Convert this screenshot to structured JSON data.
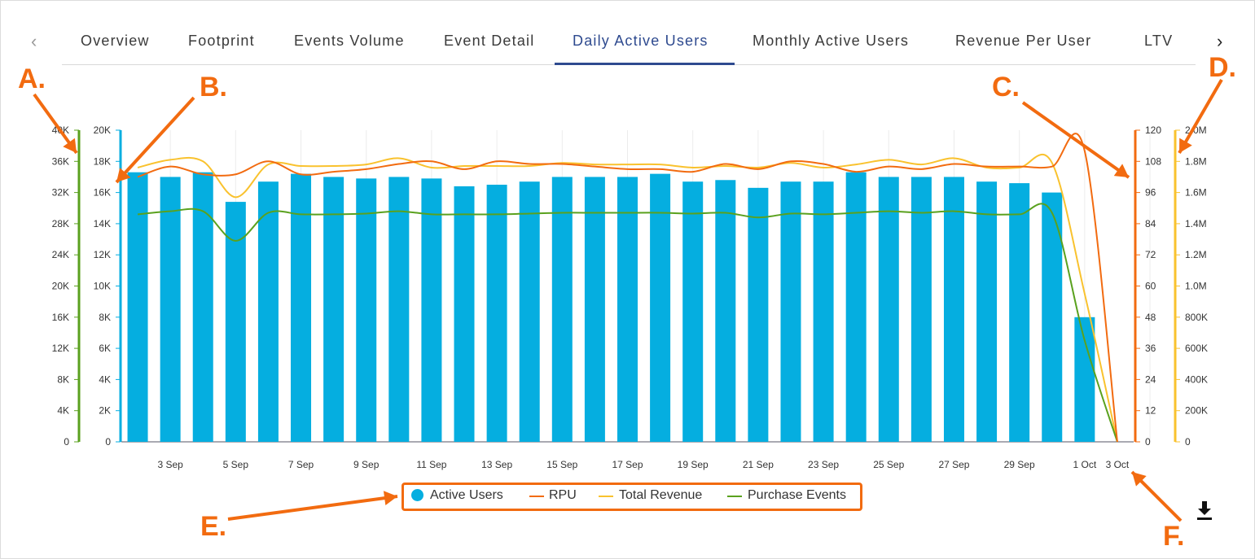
{
  "tabs": [
    {
      "label": "Overview"
    },
    {
      "label": "Footprint"
    },
    {
      "label": "Events Volume"
    },
    {
      "label": "Event Detail"
    },
    {
      "label": "Daily Active Users",
      "active": true
    },
    {
      "label": "Monthly Active Users"
    },
    {
      "label": "Revenue Per User"
    },
    {
      "label": "LTV"
    }
  ],
  "nav": {
    "prev": "‹",
    "next": "›"
  },
  "callouts": {
    "a": "A.",
    "b": "B.",
    "c": "C.",
    "d": "D.",
    "e": "E.",
    "f": "F."
  },
  "colors": {
    "active_users": "#05aee0",
    "rpu": "#f26b10",
    "total_revenue": "#f9c22e",
    "purchase_events": "#5aa11e",
    "accent": "#2e4a8f",
    "callout": "#f26b10"
  },
  "legend": [
    {
      "label": "Active Users",
      "color": "#05aee0",
      "shape": "dot"
    },
    {
      "label": "RPU",
      "color": "#f26b10",
      "shape": "line"
    },
    {
      "label": "Total Revenue",
      "color": "#f9c22e",
      "shape": "line"
    },
    {
      "label": "Purchase Events",
      "color": "#5aa11e",
      "shape": "line"
    }
  ],
  "download_icon": "download-icon",
  "chart_data": {
    "type": "bar",
    "x_tick_labels": [
      "3 Sep",
      "5 Sep",
      "7 Sep",
      "9 Sep",
      "11 Sep",
      "13 Sep",
      "15 Sep",
      "17 Sep",
      "19 Sep",
      "21 Sep",
      "23 Sep",
      "25 Sep",
      "27 Sep",
      "29 Sep",
      "1 Oct",
      "3 Oct"
    ],
    "axes": {
      "a": {
        "side": "left",
        "color": "#5aa11e",
        "ticks": [
          "0",
          "4K",
          "8K",
          "12K",
          "16K",
          "20K",
          "24K",
          "28K",
          "32K",
          "36K",
          "40K"
        ],
        "ylim": [
          0,
          40000
        ],
        "series": "Purchase Events"
      },
      "b": {
        "side": "left",
        "color": "#05aee0",
        "ticks": [
          "0",
          "2K",
          "4K",
          "6K",
          "8K",
          "10K",
          "12K",
          "14K",
          "16K",
          "18K",
          "20K"
        ],
        "ylim": [
          0,
          20000
        ],
        "series": "Active Users"
      },
      "c": {
        "side": "right",
        "color": "#f26b10",
        "ticks": [
          "0",
          "12",
          "24",
          "36",
          "48",
          "60",
          "72",
          "84",
          "96",
          "108",
          "120"
        ],
        "ylim": [
          0,
          120
        ],
        "series": "RPU"
      },
      "d": {
        "side": "right",
        "color": "#f9c22e",
        "ticks": [
          "0",
          "200K",
          "400K",
          "600K",
          "800K",
          "1.0M",
          "1.2M",
          "1.4M",
          "1.6M",
          "1.8M",
          "2.0M"
        ],
        "ylim": [
          0,
          2000000
        ],
        "series": "Total Revenue"
      }
    },
    "series": [
      {
        "name": "Active Users",
        "type": "bar",
        "axis": "b",
        "values": [
          17300,
          17000,
          17300,
          15400,
          16700,
          17200,
          17000,
          16900,
          17000,
          16900,
          16400,
          16500,
          16700,
          17000,
          17000,
          17000,
          17200,
          16700,
          16800,
          16300,
          16700,
          16700,
          17300,
          17000,
          17000,
          17000,
          16700,
          16600,
          16000,
          8000,
          0
        ]
      },
      {
        "name": "RPU",
        "type": "line",
        "axis": "c",
        "values": [
          102,
          106,
          103,
          103,
          108,
          103,
          104,
          105,
          107,
          108,
          105,
          108,
          107,
          107,
          106,
          105,
          105,
          104,
          107,
          105,
          108,
          107,
          104,
          106,
          105,
          107,
          106,
          106,
          106,
          112,
          0
        ]
      },
      {
        "name": "Total Revenue",
        "type": "line",
        "axis": "d",
        "values": [
          1760000,
          1810000,
          1800000,
          1570000,
          1780000,
          1770000,
          1770000,
          1780000,
          1820000,
          1760000,
          1770000,
          1770000,
          1770000,
          1790000,
          1780000,
          1780000,
          1780000,
          1760000,
          1770000,
          1760000,
          1790000,
          1760000,
          1780000,
          1810000,
          1780000,
          1820000,
          1760000,
          1760000,
          1790000,
          950000,
          0
        ]
      },
      {
        "name": "Purchase Events",
        "type": "line",
        "axis": "a",
        "values": [
          29200,
          29600,
          29600,
          25800,
          29400,
          29200,
          29200,
          29300,
          29600,
          29200,
          29200,
          29200,
          29300,
          29400,
          29400,
          29400,
          29400,
          29300,
          29400,
          28800,
          29300,
          29200,
          29400,
          29600,
          29400,
          29600,
          29200,
          29200,
          29400,
          13000,
          0
        ]
      }
    ]
  }
}
